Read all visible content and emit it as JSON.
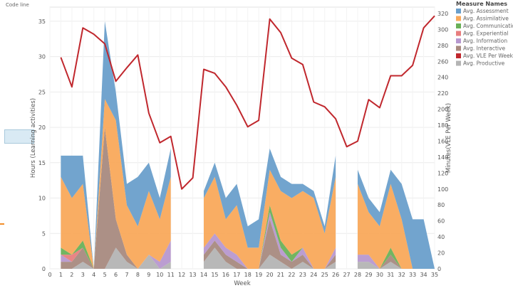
{
  "header": {
    "label": "Code line"
  },
  "chart_data": {
    "type": "area",
    "title": "",
    "xlabel": "Week",
    "ylabel_left": "Hours (Learning activities)",
    "ylabel_right": "Minutes(VLE Per Week)",
    "x_ticks": [
      "0",
      "1",
      "2",
      "3",
      "4",
      "5",
      "6",
      "7",
      "8",
      "9",
      "10",
      "11",
      "12",
      "13",
      "14",
      "15",
      "16",
      "17",
      "18",
      "19",
      "20",
      "21",
      "22",
      "23",
      "24",
      "25",
      "26",
      "27",
      "28",
      "29",
      "30",
      "31",
      "32",
      "33",
      "34",
      "35"
    ],
    "y_left_ticks": [
      "0",
      "5",
      "10",
      "15",
      "20",
      "25",
      "30",
      "35"
    ],
    "y_left_range": [
      0,
      37
    ],
    "y_right_ticks": [
      "0",
      "20",
      "40",
      "60",
      "80",
      "100",
      "120",
      "140",
      "160",
      "180",
      "200",
      "220",
      "240",
      "260",
      "280",
      "300",
      "320"
    ],
    "y_right_range": [
      0,
      328
    ],
    "grid": true,
    "legend_title": "Measure Names",
    "legend_position": "top-right",
    "colors": {
      "Avg. Assessment": "#6a9fcb",
      "Avg. Assimilative": "#f9a95b",
      "Avg. Communication": "#6ab158",
      "Avg. Experiential": "#e87e7e",
      "Avg. Information": "#b798cf",
      "Avg. Interactive": "#a88a80",
      "Avg. VLE Per Week": "#c0272d",
      "Avg. Productive": "#b4b4b4"
    },
    "legend": [
      "Avg. Assessment",
      "Avg. Assimilative",
      "Avg. Communication",
      "Avg. Experiential",
      "Avg. Information",
      "Avg. Interactive",
      "Avg. VLE Per Week",
      "Avg. Productive"
    ],
    "area_segments": [
      {
        "weeks": [
          1,
          2,
          3,
          4,
          5,
          6,
          7,
          8,
          9,
          10,
          11
        ],
        "series": {
          "Avg. Productive": [
            0,
            0,
            1,
            0,
            0,
            3,
            1,
            0,
            2,
            0,
            1
          ],
          "Avg. Interactive": [
            1,
            1,
            2,
            0,
            20,
            4,
            1,
            0,
            0,
            0,
            0
          ],
          "Avg. Information": [
            1,
            0,
            0,
            0,
            0,
            0,
            0,
            0,
            0,
            1,
            3
          ],
          "Avg. Experiential": [
            0,
            1,
            0,
            0,
            0,
            0,
            0,
            0,
            0,
            0,
            0
          ],
          "Avg. Communication": [
            1,
            0,
            1,
            0,
            0,
            0,
            0,
            0,
            0,
            0,
            0
          ],
          "Avg. Assimilative": [
            10,
            8,
            8,
            0,
            4,
            14,
            7,
            6,
            9,
            6,
            9
          ],
          "Avg. Assessment": [
            3,
            6,
            4,
            0,
            11,
            4,
            3,
            7,
            4,
            3,
            4
          ]
        }
      },
      {
        "weeks": [
          14,
          15,
          16,
          17,
          18,
          19,
          20,
          21,
          22,
          23,
          24,
          25,
          26
        ],
        "series": {
          "Avg. Productive": [
            1,
            3,
            1,
            0,
            0,
            0,
            2,
            1,
            0,
            1,
            0,
            0,
            1
          ],
          "Avg. Interactive": [
            1,
            1,
            1,
            1,
            0,
            0,
            5,
            1,
            1,
            1,
            0,
            0,
            1
          ],
          "Avg. Information": [
            1,
            1,
            1,
            1,
            0,
            0,
            1,
            1,
            0,
            1,
            0,
            0,
            1
          ],
          "Avg. Experiential": [
            0,
            0,
            0,
            0,
            0,
            0,
            0,
            0,
            0,
            0,
            0,
            0,
            0
          ],
          "Avg. Communication": [
            0,
            0,
            0,
            0,
            0,
            0,
            1,
            1,
            1,
            0,
            0,
            0,
            0
          ],
          "Avg. Assimilative": [
            7,
            8,
            4,
            7,
            3,
            3,
            5,
            7,
            8,
            8,
            10,
            5,
            10
          ],
          "Avg. Assessment": [
            1,
            2,
            3,
            3,
            3,
            4,
            3,
            2,
            2,
            1,
            1,
            1,
            3
          ]
        }
      },
      {
        "weeks": [
          28,
          29,
          30,
          31,
          32,
          33,
          34,
          35
        ],
        "series": {
          "Avg. Productive": [
            1,
            1,
            0,
            1,
            0,
            0,
            0,
            0
          ],
          "Avg. Interactive": [
            0,
            0,
            0,
            1,
            0,
            0,
            0,
            0
          ],
          "Avg. Information": [
            1,
            1,
            0,
            0,
            0,
            0,
            0,
            0
          ],
          "Avg. Experiential": [
            0,
            0,
            0,
            0,
            0,
            0,
            0,
            0
          ],
          "Avg. Communication": [
            0,
            0,
            0,
            1,
            0,
            0,
            0,
            0
          ],
          "Avg. Assimilative": [
            10,
            6,
            6,
            9,
            7,
            0,
            0,
            0
          ],
          "Avg. Assessment": [
            2,
            2,
            2,
            2,
            5,
            7,
            7,
            0
          ]
        }
      }
    ],
    "vle_line": {
      "name": "Avg. VLE Per Week",
      "x": [
        1,
        2,
        3,
        4,
        5,
        6,
        7,
        8,
        9,
        10,
        11,
        12,
        13,
        14,
        15,
        16,
        17,
        18,
        19,
        20,
        21,
        22,
        23,
        24,
        25,
        26,
        27,
        28,
        29,
        30,
        31,
        32,
        33,
        34,
        35
      ],
      "y": [
        265,
        228,
        302,
        294,
        282,
        235,
        252,
        268,
        195,
        158,
        166,
        100,
        114,
        250,
        245,
        228,
        205,
        178,
        186,
        313,
        296,
        264,
        256,
        209,
        203,
        188,
        153,
        160,
        212,
        202,
        242,
        242,
        255,
        302,
        317
      ]
    }
  }
}
